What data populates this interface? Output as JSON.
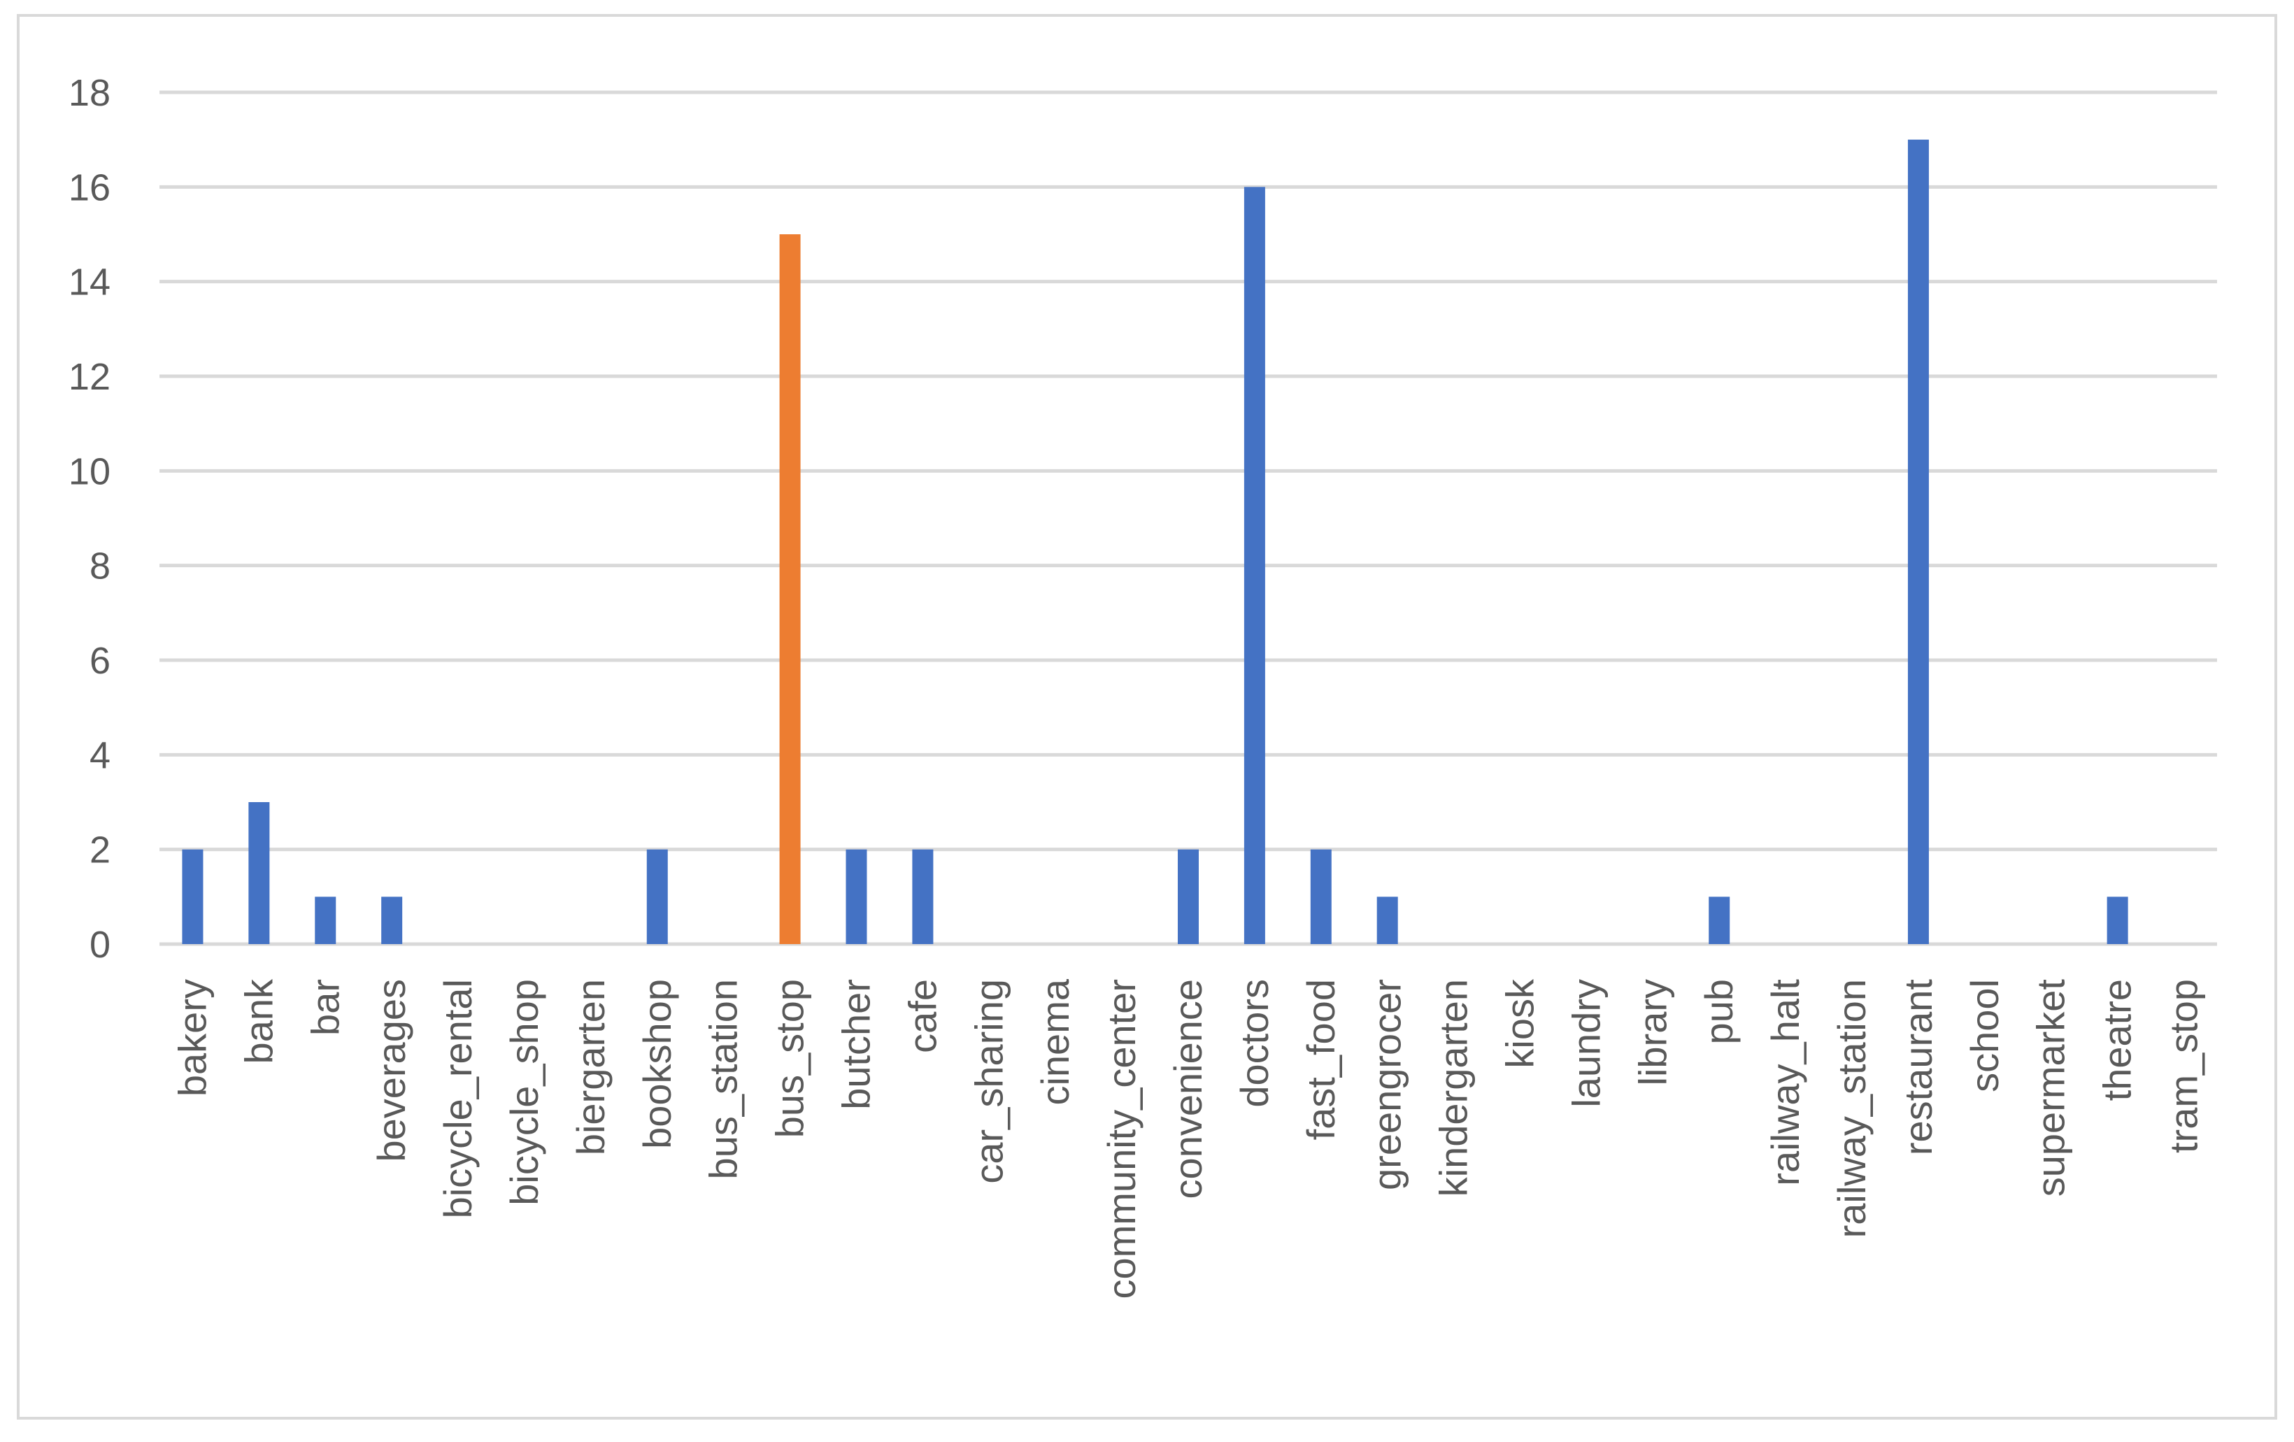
{
  "chart_data": {
    "type": "bar",
    "title": "",
    "xlabel": "",
    "ylabel": "",
    "ylim": [
      0,
      18
    ],
    "ytick_step": 2,
    "grid": true,
    "legend": "none",
    "categories": [
      "bakery",
      "bank",
      "bar",
      "beverages",
      "bicycle_rental",
      "bicycle_shop",
      "biergarten",
      "bookshop",
      "bus_station",
      "bus_stop",
      "butcher",
      "cafe",
      "car_sharing",
      "cinema",
      "community_center",
      "convenience",
      "doctors",
      "fast_food",
      "greengrocer",
      "kindergarten",
      "kiosk",
      "laundry",
      "library",
      "pub",
      "railway_halt",
      "railway_station",
      "restaurant",
      "school",
      "supermarket",
      "theatre",
      "tram_stop"
    ],
    "values": [
      2,
      3,
      1,
      1,
      0,
      0,
      0,
      2,
      0,
      15,
      2,
      2,
      0,
      0,
      0,
      2,
      16,
      2,
      1,
      0,
      0,
      0,
      0,
      1,
      0,
      0,
      17,
      0,
      0,
      1,
      0
    ],
    "highlight": {
      "category": "bus_stop",
      "color": "#ED7D31"
    },
    "colors": {
      "bar": "#4472C4",
      "highlight": "#ED7D31",
      "grid": "#d9d9d9",
      "text": "#595959"
    }
  }
}
